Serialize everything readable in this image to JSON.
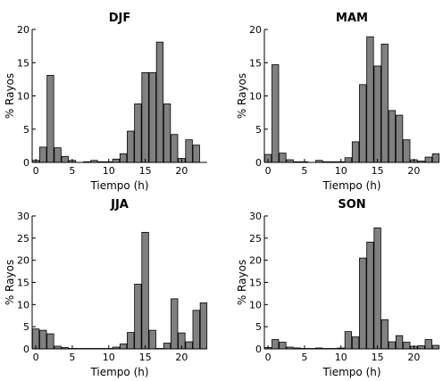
{
  "chart_data": [
    {
      "type": "bar",
      "title": "DJF",
      "xlabel": "Tiempo (h)",
      "ylabel": "% Rayos",
      "xlim": [
        -0.5,
        23.5
      ],
      "ylim": [
        0,
        20
      ],
      "xticks": [
        "0",
        "5",
        "10",
        "15",
        "20"
      ],
      "yticks": [
        "0",
        "5",
        "10",
        "15",
        "20"
      ],
      "x": [
        0,
        1,
        2,
        3,
        4,
        5,
        6,
        7,
        8,
        9,
        10,
        11,
        12,
        13,
        14,
        15,
        16,
        17,
        18,
        19,
        20,
        21,
        22,
        23
      ],
      "values": [
        0.3,
        2.3,
        13.1,
        2.2,
        0.9,
        0.3,
        0.0,
        0.1,
        0.3,
        0.1,
        0.1,
        0.5,
        1.3,
        4.7,
        8.8,
        13.5,
        13.5,
        18.1,
        8.8,
        4.2,
        0.6,
        3.4,
        2.6,
        0.0
      ]
    },
    {
      "type": "bar",
      "title": "MAM",
      "xlabel": "Tiempo (h)",
      "ylabel": "% Rayos",
      "xlim": [
        -0.5,
        23.5
      ],
      "ylim": [
        0,
        20
      ],
      "xticks": [
        "0",
        "5",
        "10",
        "15",
        "20"
      ],
      "yticks": [
        "0",
        "5",
        "10",
        "15",
        "20"
      ],
      "x": [
        0,
        1,
        2,
        3,
        4,
        5,
        6,
        7,
        8,
        9,
        10,
        11,
        12,
        13,
        14,
        15,
        16,
        17,
        18,
        19,
        20,
        21,
        22,
        23
      ],
      "values": [
        1.2,
        14.7,
        1.4,
        0.4,
        0.1,
        0.1,
        0.0,
        0.3,
        0.1,
        0.1,
        0.1,
        0.7,
        3.1,
        11.7,
        18.9,
        14.5,
        17.8,
        7.8,
        7.1,
        3.4,
        0.4,
        0.2,
        0.8,
        1.3
      ]
    },
    {
      "type": "bar",
      "title": "JJA",
      "xlabel": "Tiempo (h)",
      "ylabel": "% Rayos",
      "xlim": [
        -0.5,
        23.5
      ],
      "ylim": [
        0,
        30
      ],
      "xticks": [
        "0",
        "5",
        "10",
        "15",
        "20"
      ],
      "yticks": [
        "0",
        "5",
        "10",
        "15",
        "20",
        "25",
        "30"
      ],
      "x": [
        0,
        1,
        2,
        3,
        4,
        5,
        6,
        7,
        8,
        9,
        10,
        11,
        12,
        13,
        14,
        15,
        16,
        17,
        18,
        19,
        20,
        21,
        22,
        23
      ],
      "values": [
        4.5,
        4.2,
        3.4,
        0.6,
        0.3,
        0.1,
        0.1,
        0.1,
        0.1,
        0.1,
        0.1,
        0.4,
        1.1,
        3.7,
        14.6,
        26.3,
        4.2,
        0.1,
        1.3,
        11.3,
        3.6,
        1.6,
        8.7,
        10.4
      ]
    },
    {
      "type": "bar",
      "title": "SON",
      "xlabel": "Tiempo (h)",
      "ylabel": "% Rayos",
      "xlim": [
        -0.5,
        23.5
      ],
      "ylim": [
        0,
        30
      ],
      "xticks": [
        "0",
        "5",
        "10",
        "15",
        "20"
      ],
      "yticks": [
        "0",
        "5",
        "10",
        "15",
        "20",
        "25",
        "30"
      ],
      "x": [
        0,
        1,
        2,
        3,
        4,
        5,
        6,
        7,
        8,
        9,
        10,
        11,
        12,
        13,
        14,
        15,
        16,
        17,
        18,
        19,
        20,
        21,
        22,
        23
      ],
      "values": [
        0.3,
        2.1,
        1.5,
        0.4,
        0.2,
        0.1,
        0.1,
        0.2,
        0.1,
        0.1,
        0.2,
        3.9,
        2.7,
        20.5,
        24.1,
        27.3,
        6.6,
        1.6,
        3.0,
        1.5,
        0.6,
        0.7,
        2.1,
        0.8
      ]
    }
  ],
  "colors": {
    "bar_fill": "#808080",
    "bar_edge": "#000000",
    "axis": "#000000"
  }
}
